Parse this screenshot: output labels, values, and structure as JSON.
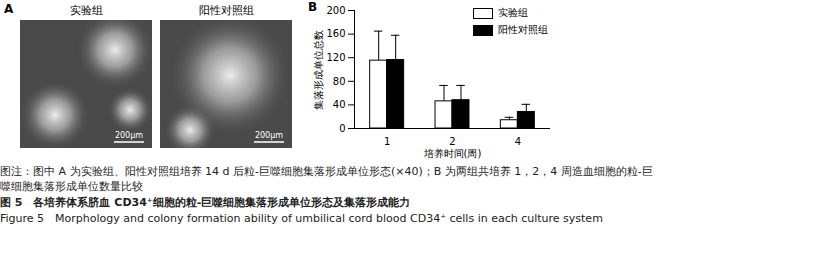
{
  "panel_a": {
    "label": "A",
    "images": [
      {
        "title": "实验组",
        "scale_bar": "200μm"
      },
      {
        "title": "阳性对照组",
        "scale_bar": "200μm"
      }
    ]
  },
  "chart_data": {
    "type": "bar",
    "panel_label": "B",
    "x_label": "培养时间(周)",
    "y_label": "集落形成单位总数",
    "categories": [
      1,
      2,
      4
    ],
    "series": [
      {
        "name": "实验组",
        "color": "#ffffff",
        "values": [
          115,
          46,
          14
        ],
        "errors": [
          50,
          27,
          5
        ]
      },
      {
        "name": "阳性对照组",
        "color": "#000000",
        "values": [
          116,
          48,
          28
        ],
        "errors": [
          42,
          25,
          13
        ]
      }
    ],
    "ylim": [
      0,
      200
    ],
    "yticks": [
      0,
      40,
      80,
      120,
      160,
      200
    ],
    "grid": false,
    "legend": "top-right"
  },
  "caption": {
    "note": "图注：图中 A 为实验组、阳性对照组培养 14 d 后粒-巨噬细胞集落形成单位形态(×40)；B 为两组共培养 1，2，4 周造血细胞的粒-巨噬细胞集落形成单位数量比较",
    "figure_title": "图 5　各培养体系脐血 CD34⁺细胞的粒-巨噬细胞集落形成单位形态及集落形成能力",
    "figure_title_en": "Figure 5　Morphology and colony formation ability of umbilical cord blood CD34⁺ cells in each culture system"
  }
}
